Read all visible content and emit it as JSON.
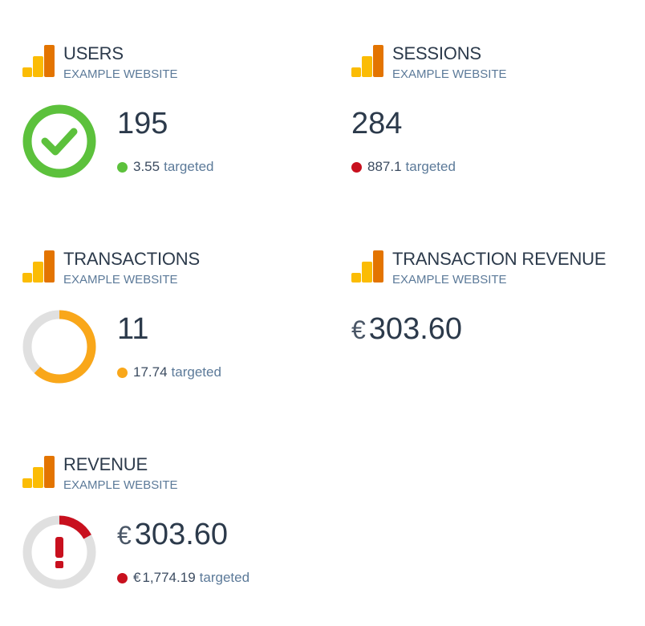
{
  "colors": {
    "green": "#5cc13c",
    "orange": "#f9a71a",
    "red": "#c8101e",
    "track": "#e0e0e0",
    "logo_dark": "#e37400",
    "logo_light": "#fbbc04"
  },
  "widgets": {
    "users": {
      "title": "USERS",
      "subtitle": "EXAMPLE WEBSITE",
      "value": "195",
      "target_value": "3.55",
      "target_label": "targeted",
      "status": "success",
      "status_icon": "checkmark-icon",
      "progress": 1.0
    },
    "sessions": {
      "title": "SESSIONS",
      "subtitle": "EXAMPLE WEBSITE",
      "value": "284",
      "target_value": "887.1",
      "target_label": "targeted",
      "status": "below-target"
    },
    "transactions": {
      "title": "TRANSACTIONS",
      "subtitle": "EXAMPLE WEBSITE",
      "value": "11",
      "target_value": "17.74",
      "target_label": "targeted",
      "status": "warning",
      "progress": 0.62
    },
    "transaction_revenue": {
      "title": "TRANSACTION REVENUE",
      "subtitle": "EXAMPLE WEBSITE",
      "currency": "€",
      "value": "303.60"
    },
    "revenue": {
      "title": "REVENUE",
      "subtitle": "EXAMPLE WEBSITE",
      "currency": "€",
      "value": "303.60",
      "target_currency": "€",
      "target_value": "1,774.19",
      "target_label": "targeted",
      "status": "danger",
      "status_icon": "exclamation-icon",
      "progress": 0.17
    }
  }
}
